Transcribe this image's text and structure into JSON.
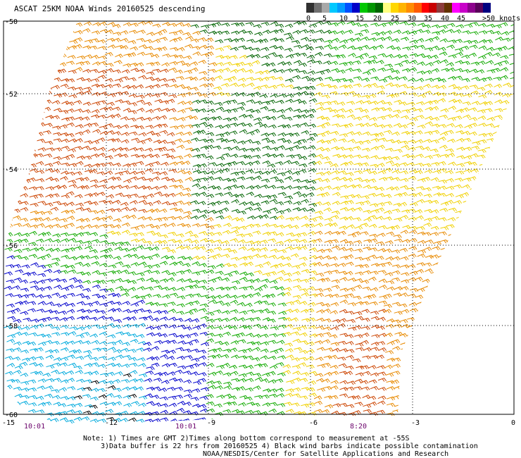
{
  "title": "ASCAT 25KM NOAA Winds 20160525 descending",
  "legend": {
    "colors": [
      "#303030",
      "#707070",
      "#a8a8a8",
      "#00c8ff",
      "#009bff",
      "#0050ff",
      "#0000c8",
      "#00c800",
      "#009600",
      "#006400",
      "#ffff80",
      "#ffd700",
      "#ffb400",
      "#ff8c00",
      "#ff5a00",
      "#ff0000",
      "#c80000",
      "#8c3c3c",
      "#643200",
      "#ff00ff",
      "#c800c8",
      "#8c008c",
      "#5a005a",
      "#000080"
    ],
    "labels": [
      "0",
      "5",
      "10",
      "15",
      "20",
      "25",
      "30",
      "35",
      "40",
      "45",
      ">50 knots"
    ]
  },
  "map": {
    "lat_labels": [
      "-50",
      "-52",
      "-54",
      "-56",
      "-58",
      "-60"
    ],
    "lon_labels": [
      "-15",
      "-12",
      "-9",
      "-6",
      "-3",
      "0"
    ],
    "times": [
      "10:01",
      "10:01",
      "8:20"
    ],
    "wind_colors": {
      "orange_red": "#cc4400",
      "orange": "#e88a00",
      "yellow": "#f0d000",
      "green": "#11aa00",
      "dark_green": "#006400",
      "blue": "#0000cc",
      "cyan": "#00aadd",
      "contaminated": "#000000"
    }
  },
  "notes": [
    "Note: 1) Times are GMT 2)Times along bottom correspond to measurement at -55S",
    "3)Data buffer is 22 hrs from 20160525 4) Black wind barbs indicate possible contamination",
    "NOAA/NESDIS/Center for Satellite Applications and Research"
  ]
}
